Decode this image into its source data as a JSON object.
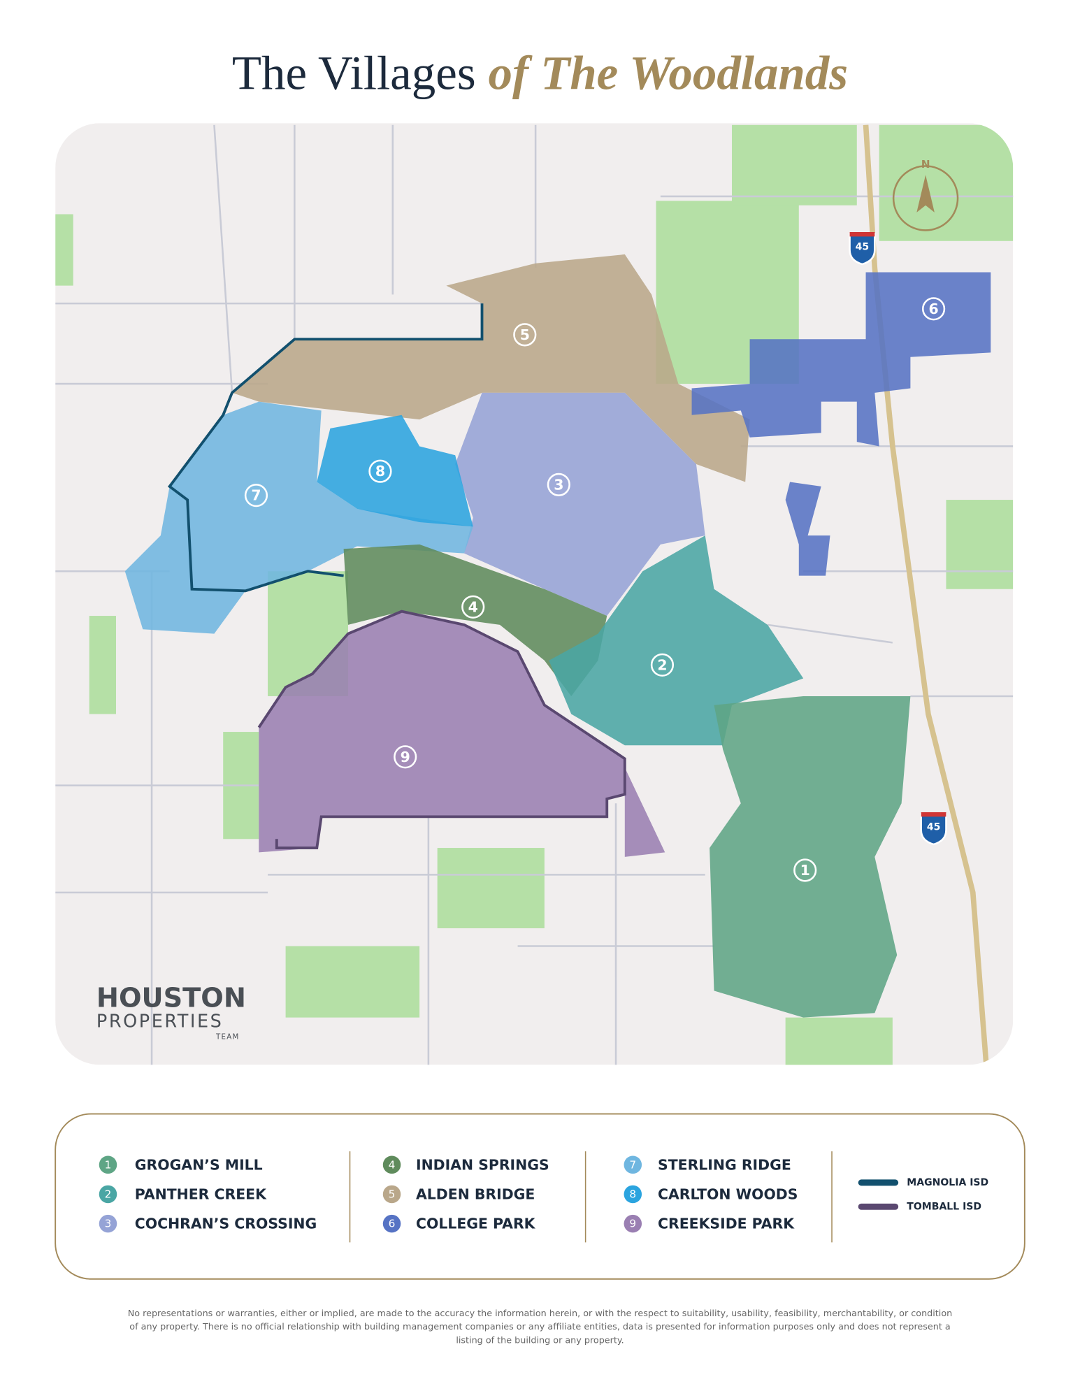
{
  "title": {
    "main": "The Villages",
    "accent": "of The Woodlands"
  },
  "map": {
    "compass": "N",
    "highway_shields": [
      "45",
      "45"
    ]
  },
  "villages": [
    {
      "number": "1",
      "name": "GROGAN’S MILL",
      "color": "#5ea585"
    },
    {
      "number": "2",
      "name": "PANTHER CREEK",
      "color": "#4aa6a4"
    },
    {
      "number": "3",
      "name": "COCHRAN’S CROSSING",
      "color": "#95a3d6"
    },
    {
      "number": "4",
      "name": "INDIAN SPRINGS",
      "color": "#5f8b5c"
    },
    {
      "number": "5",
      "name": "ALDEN BRIDGE",
      "color": "#b9a78a"
    },
    {
      "number": "6",
      "name": "COLLEGE PARK",
      "color": "#5673c4"
    },
    {
      "number": "7",
      "name": "STERLING RIDGE",
      "color": "#6fb6e0"
    },
    {
      "number": "8",
      "name": "CARLTON WOODS",
      "color": "#2ba4df"
    },
    {
      "number": "9",
      "name": "CREEKSIDE PARK",
      "color": "#9a7fb2"
    }
  ],
  "districts": [
    {
      "name": "MAGNOLIA ISD",
      "color": "#12506e"
    },
    {
      "name": "TOMBALL ISD",
      "color": "#5a4870"
    }
  ],
  "logo": {
    "line1": "HOUSTON",
    "line2": "PROPERTIES",
    "line3": "TEAM"
  },
  "disclaimer": [
    "No representations or warranties, either or implied, are made to the accuracy the information herein, or with the respect to suitability, usability, feasibility, merchantability, or condition",
    "of any property. There is no official relationship with building management companies or any affiliate entities, data is presented for information purposes only and does not represent a",
    "listing of the building or any property."
  ]
}
